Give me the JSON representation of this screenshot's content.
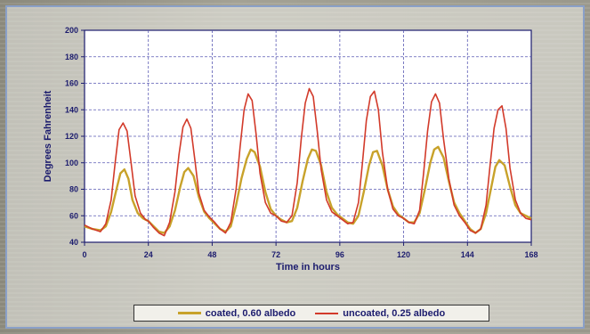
{
  "chart_data": {
    "type": "line",
    "title": "",
    "xlabel": "Time in hours",
    "ylabel": "Degrees Fahrenheit",
    "xlim": [
      0,
      168
    ],
    "ylim": [
      40,
      200
    ],
    "xticks": [
      0,
      24,
      48,
      72,
      96,
      120,
      144,
      168
    ],
    "yticks": [
      40,
      60,
      80,
      100,
      120,
      140,
      160,
      180,
      200
    ],
    "grid": true,
    "legend_position": "bottom",
    "series": [
      {
        "name": "coated, 0.60 albedo",
        "color": "#c8a22a",
        "points": [
          [
            0,
            52
          ],
          [
            3,
            50
          ],
          [
            6,
            49
          ],
          [
            8,
            52
          ],
          [
            10,
            63
          ],
          [
            12,
            80
          ],
          [
            13.5,
            92
          ],
          [
            15,
            95
          ],
          [
            16.5,
            88
          ],
          [
            18,
            72
          ],
          [
            20,
            62
          ],
          [
            22,
            58
          ],
          [
            24,
            56
          ],
          [
            26,
            52
          ],
          [
            28,
            48
          ],
          [
            30,
            47
          ],
          [
            32,
            52
          ],
          [
            34,
            64
          ],
          [
            36,
            82
          ],
          [
            37.5,
            93
          ],
          [
            39,
            96
          ],
          [
            41,
            90
          ],
          [
            43,
            74
          ],
          [
            45,
            63
          ],
          [
            47,
            58
          ],
          [
            49,
            54
          ],
          [
            51,
            50
          ],
          [
            53,
            48
          ],
          [
            55,
            52
          ],
          [
            57,
            68
          ],
          [
            59,
            88
          ],
          [
            61,
            103
          ],
          [
            62.5,
            110
          ],
          [
            64,
            108
          ],
          [
            66,
            97
          ],
          [
            68,
            78
          ],
          [
            70,
            65
          ],
          [
            72,
            60
          ],
          [
            74,
            57
          ],
          [
            76,
            55
          ],
          [
            78,
            56
          ],
          [
            80,
            66
          ],
          [
            82,
            86
          ],
          [
            84,
            103
          ],
          [
            85.5,
            110
          ],
          [
            87,
            109
          ],
          [
            89,
            98
          ],
          [
            91,
            78
          ],
          [
            93,
            66
          ],
          [
            95,
            61
          ],
          [
            97,
            58
          ],
          [
            99,
            55
          ],
          [
            101,
            54
          ],
          [
            103,
            60
          ],
          [
            105,
            78
          ],
          [
            107,
            98
          ],
          [
            108.5,
            108
          ],
          [
            110,
            109
          ],
          [
            112,
            98
          ],
          [
            114,
            80
          ],
          [
            116,
            67
          ],
          [
            118,
            61
          ],
          [
            120,
            58
          ],
          [
            122,
            55
          ],
          [
            124,
            55
          ],
          [
            126,
            62
          ],
          [
            128,
            80
          ],
          [
            130,
            100
          ],
          [
            131.5,
            110
          ],
          [
            133,
            112
          ],
          [
            135,
            104
          ],
          [
            137,
            86
          ],
          [
            139,
            70
          ],
          [
            141,
            62
          ],
          [
            143,
            56
          ],
          [
            145,
            50
          ],
          [
            147,
            47
          ],
          [
            149,
            50
          ],
          [
            151,
            62
          ],
          [
            153,
            82
          ],
          [
            154.5,
            97
          ],
          [
            156,
            102
          ],
          [
            158,
            98
          ],
          [
            160,
            82
          ],
          [
            162,
            68
          ],
          [
            164,
            62
          ],
          [
            166,
            60
          ],
          [
            168,
            58
          ]
        ]
      },
      {
        "name": "uncoated, 0.25 albedo",
        "color": "#d23a2a",
        "points": [
          [
            0,
            53
          ],
          [
            3,
            50
          ],
          [
            6,
            48
          ],
          [
            8,
            54
          ],
          [
            10,
            72
          ],
          [
            11.5,
            100
          ],
          [
            13,
            125
          ],
          [
            14.5,
            130
          ],
          [
            16,
            124
          ],
          [
            17.5,
            100
          ],
          [
            19,
            75
          ],
          [
            21,
            62
          ],
          [
            23,
            57
          ],
          [
            24,
            56
          ],
          [
            26,
            51
          ],
          [
            28,
            47
          ],
          [
            30,
            45
          ],
          [
            32,
            55
          ],
          [
            34,
            78
          ],
          [
            35.5,
            106
          ],
          [
            37,
            127
          ],
          [
            38.5,
            133
          ],
          [
            40,
            126
          ],
          [
            41.5,
            102
          ],
          [
            43,
            77
          ],
          [
            45,
            64
          ],
          [
            47,
            59
          ],
          [
            49,
            55
          ],
          [
            51,
            50
          ],
          [
            53,
            47
          ],
          [
            55,
            55
          ],
          [
            57,
            80
          ],
          [
            58.5,
            112
          ],
          [
            60,
            140
          ],
          [
            61.5,
            152
          ],
          [
            63,
            147
          ],
          [
            64.5,
            122
          ],
          [
            66,
            92
          ],
          [
            68,
            70
          ],
          [
            70,
            62
          ],
          [
            72,
            60
          ],
          [
            74,
            56
          ],
          [
            76,
            55
          ],
          [
            78,
            60
          ],
          [
            80,
            85
          ],
          [
            81.5,
            118
          ],
          [
            83,
            145
          ],
          [
            84.5,
            156
          ],
          [
            86,
            150
          ],
          [
            87.5,
            124
          ],
          [
            89,
            95
          ],
          [
            91,
            72
          ],
          [
            93,
            63
          ],
          [
            95,
            60
          ],
          [
            97,
            57
          ],
          [
            99,
            54
          ],
          [
            101,
            55
          ],
          [
            103,
            70
          ],
          [
            104.5,
            100
          ],
          [
            106,
            132
          ],
          [
            107.5,
            150
          ],
          [
            109,
            154
          ],
          [
            110.5,
            140
          ],
          [
            112,
            108
          ],
          [
            114,
            80
          ],
          [
            116,
            65
          ],
          [
            118,
            60
          ],
          [
            120,
            58
          ],
          [
            122,
            55
          ],
          [
            124,
            54
          ],
          [
            126,
            64
          ],
          [
            127.5,
            92
          ],
          [
            129,
            124
          ],
          [
            130.5,
            146
          ],
          [
            132,
            152
          ],
          [
            133.5,
            145
          ],
          [
            135,
            118
          ],
          [
            137,
            88
          ],
          [
            139,
            68
          ],
          [
            141,
            60
          ],
          [
            143,
            55
          ],
          [
            145,
            49
          ],
          [
            147,
            47
          ],
          [
            149,
            50
          ],
          [
            151,
            68
          ],
          [
            152.5,
            98
          ],
          [
            154,
            126
          ],
          [
            155.5,
            140
          ],
          [
            157,
            143
          ],
          [
            158.5,
            126
          ],
          [
            160,
            96
          ],
          [
            162,
            72
          ],
          [
            164,
            62
          ],
          [
            166,
            58
          ],
          [
            168,
            57
          ]
        ]
      }
    ]
  },
  "legend": {
    "series0_label": "coated, 0.60 albedo",
    "series1_label": "uncoated, 0.25 albedo"
  }
}
